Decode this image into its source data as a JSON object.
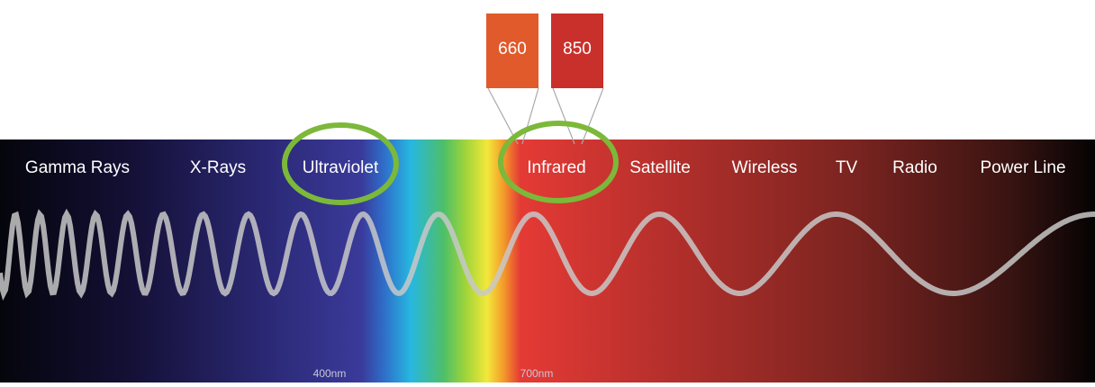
{
  "markers": [
    "660",
    "850"
  ],
  "bands": [
    "Gamma Rays",
    "X-Rays",
    "Ultraviolet",
    "Infrared",
    "Satellite",
    "Wireless",
    "TV",
    "Radio",
    "Power Line"
  ],
  "wavelengths": [
    "400nm",
    "700nm"
  ]
}
